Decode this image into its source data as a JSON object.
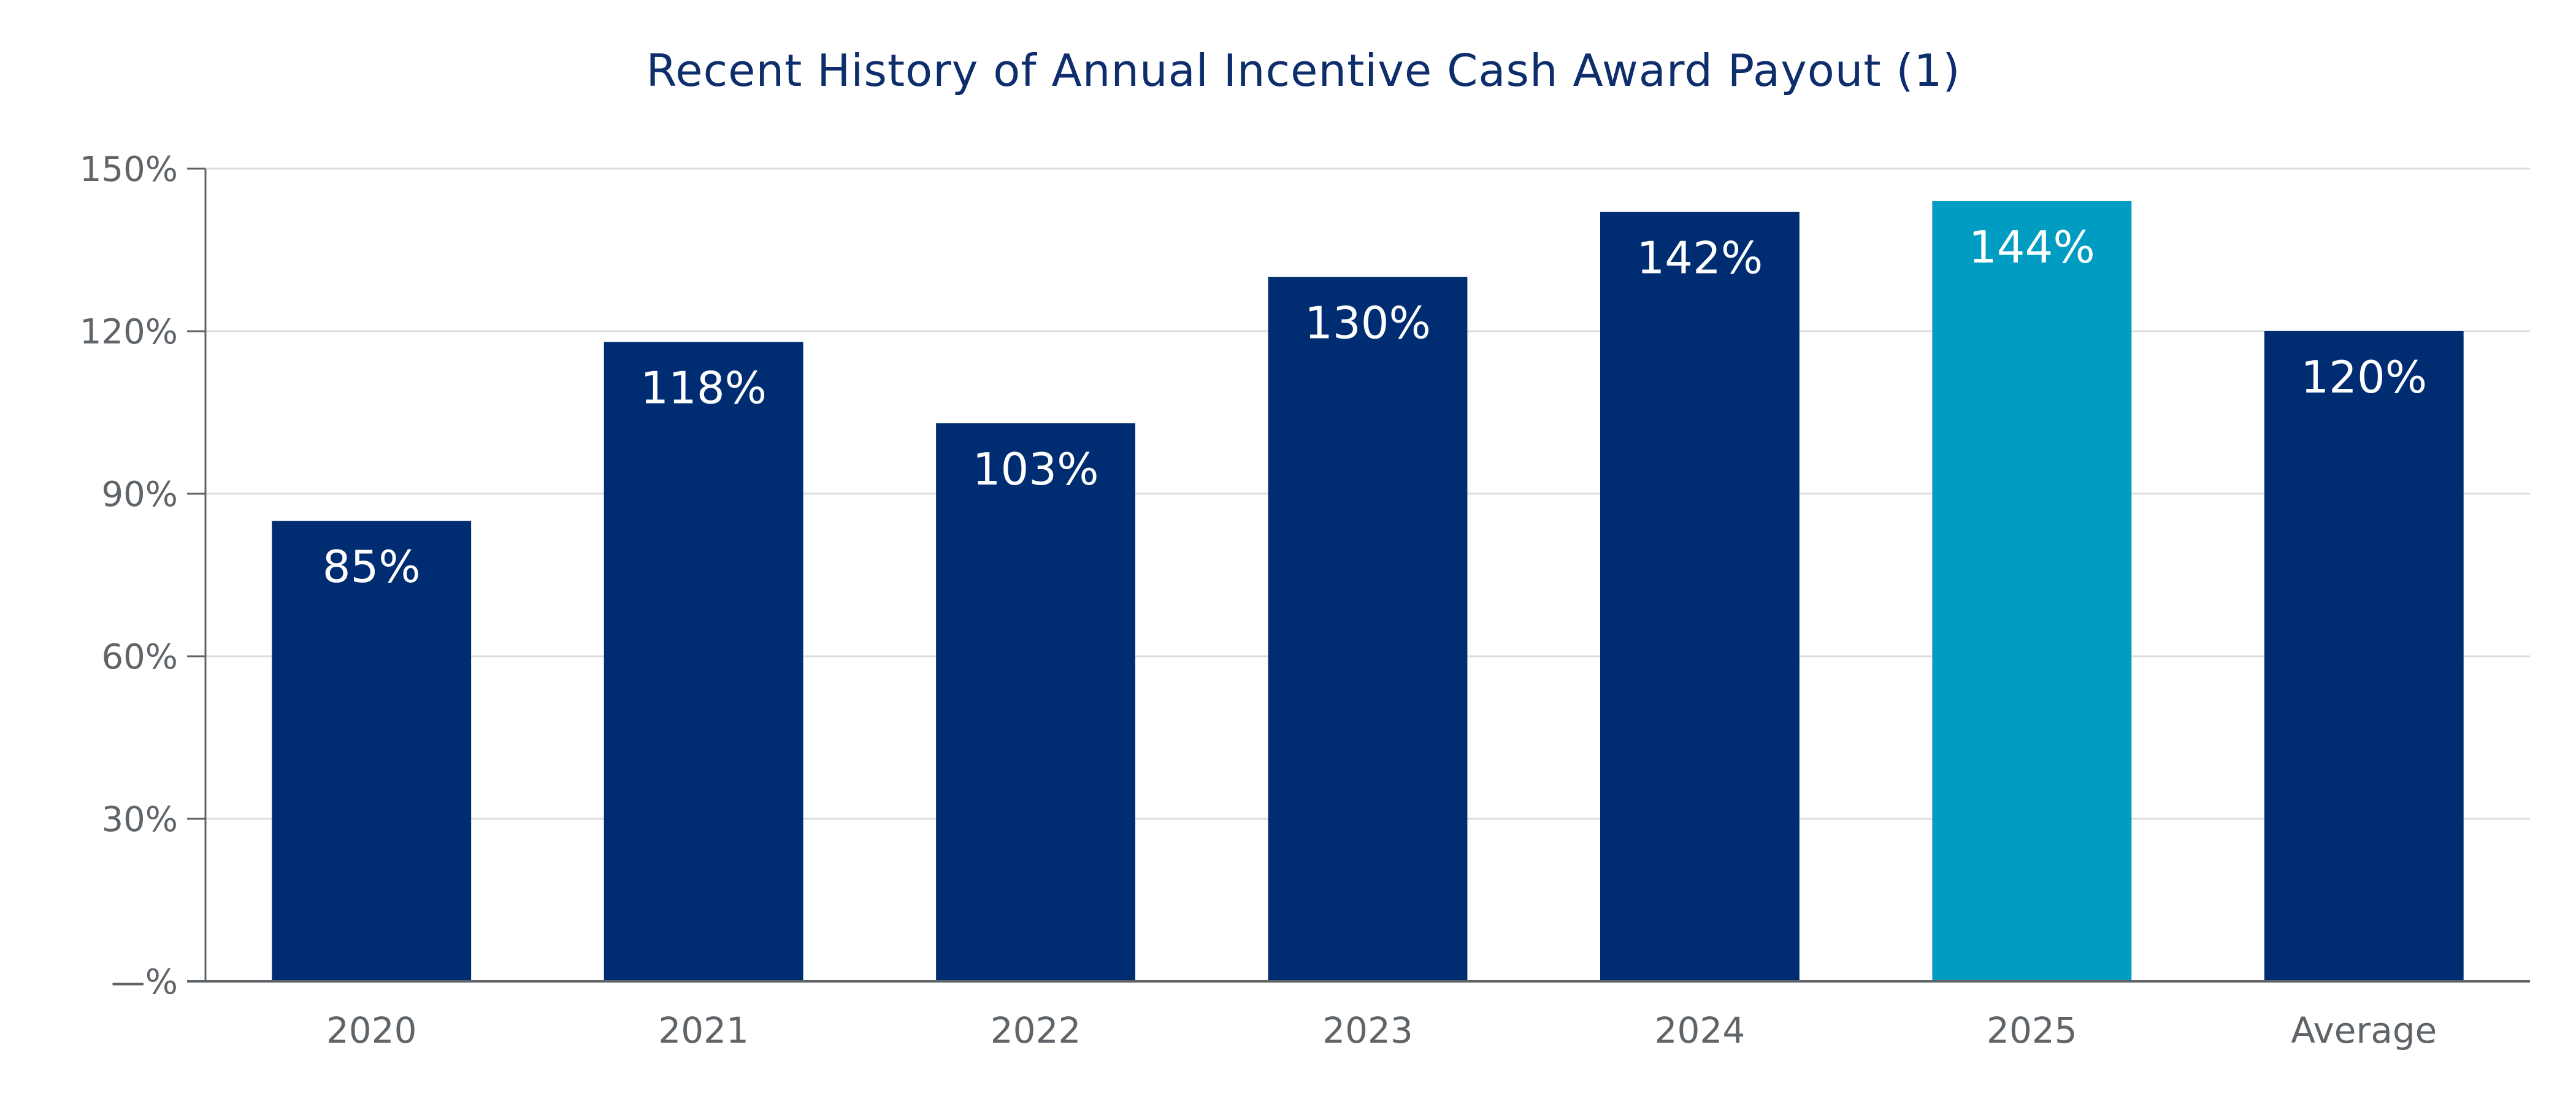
{
  "chart_data": {
    "type": "bar",
    "title": "Recent History of Annual Incentive Cash Award Payout (1)",
    "categories": [
      "2020",
      "2021",
      "2022",
      "2023",
      "2024",
      "2025",
      "Average"
    ],
    "values": [
      85,
      118,
      103,
      130,
      142,
      144,
      120
    ],
    "data_labels": [
      "85%",
      "118%",
      "103%",
      "130%",
      "142%",
      "144%",
      "120%"
    ],
    "y_ticks": [
      0,
      30,
      60,
      90,
      120,
      150
    ],
    "y_tick_labels": [
      "—%",
      "30%",
      "60%",
      "90%",
      "120%",
      "150%"
    ],
    "ylim": [
      0,
      150
    ],
    "xlabel": "",
    "ylabel": "",
    "grid": true,
    "legend": "none",
    "colors": {
      "default_bar": "#002d72",
      "highlight_bar": "#009cc2",
      "grid": "#dcdde0",
      "axis": "#5f6469",
      "title": "#0d2d6c"
    },
    "highlight_category": "2025"
  }
}
